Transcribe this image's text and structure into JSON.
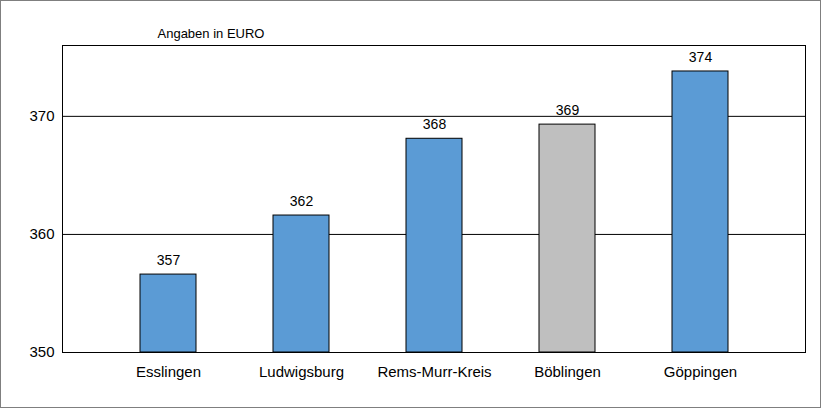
{
  "chart_data": {
    "type": "bar",
    "ylabel": "Angaben in EURO",
    "categories": [
      "Esslingen",
      "Ludwigsburg",
      "Rems-Murr-Kreis",
      "Böblingen",
      "Göppingen"
    ],
    "values": [
      356.6,
      361.6,
      368.1,
      369.3,
      373.8
    ],
    "value_labels": [
      "357",
      "362",
      "368",
      "369",
      "374"
    ],
    "colors": [
      "#5b9bd5",
      "#5b9bd5",
      "#5b9bd5",
      "#bfbfbf",
      "#5b9bd5"
    ],
    "ylim": [
      350,
      376
    ],
    "yticks": [
      350,
      360,
      370
    ],
    "grid": true,
    "data_labels": true
  }
}
